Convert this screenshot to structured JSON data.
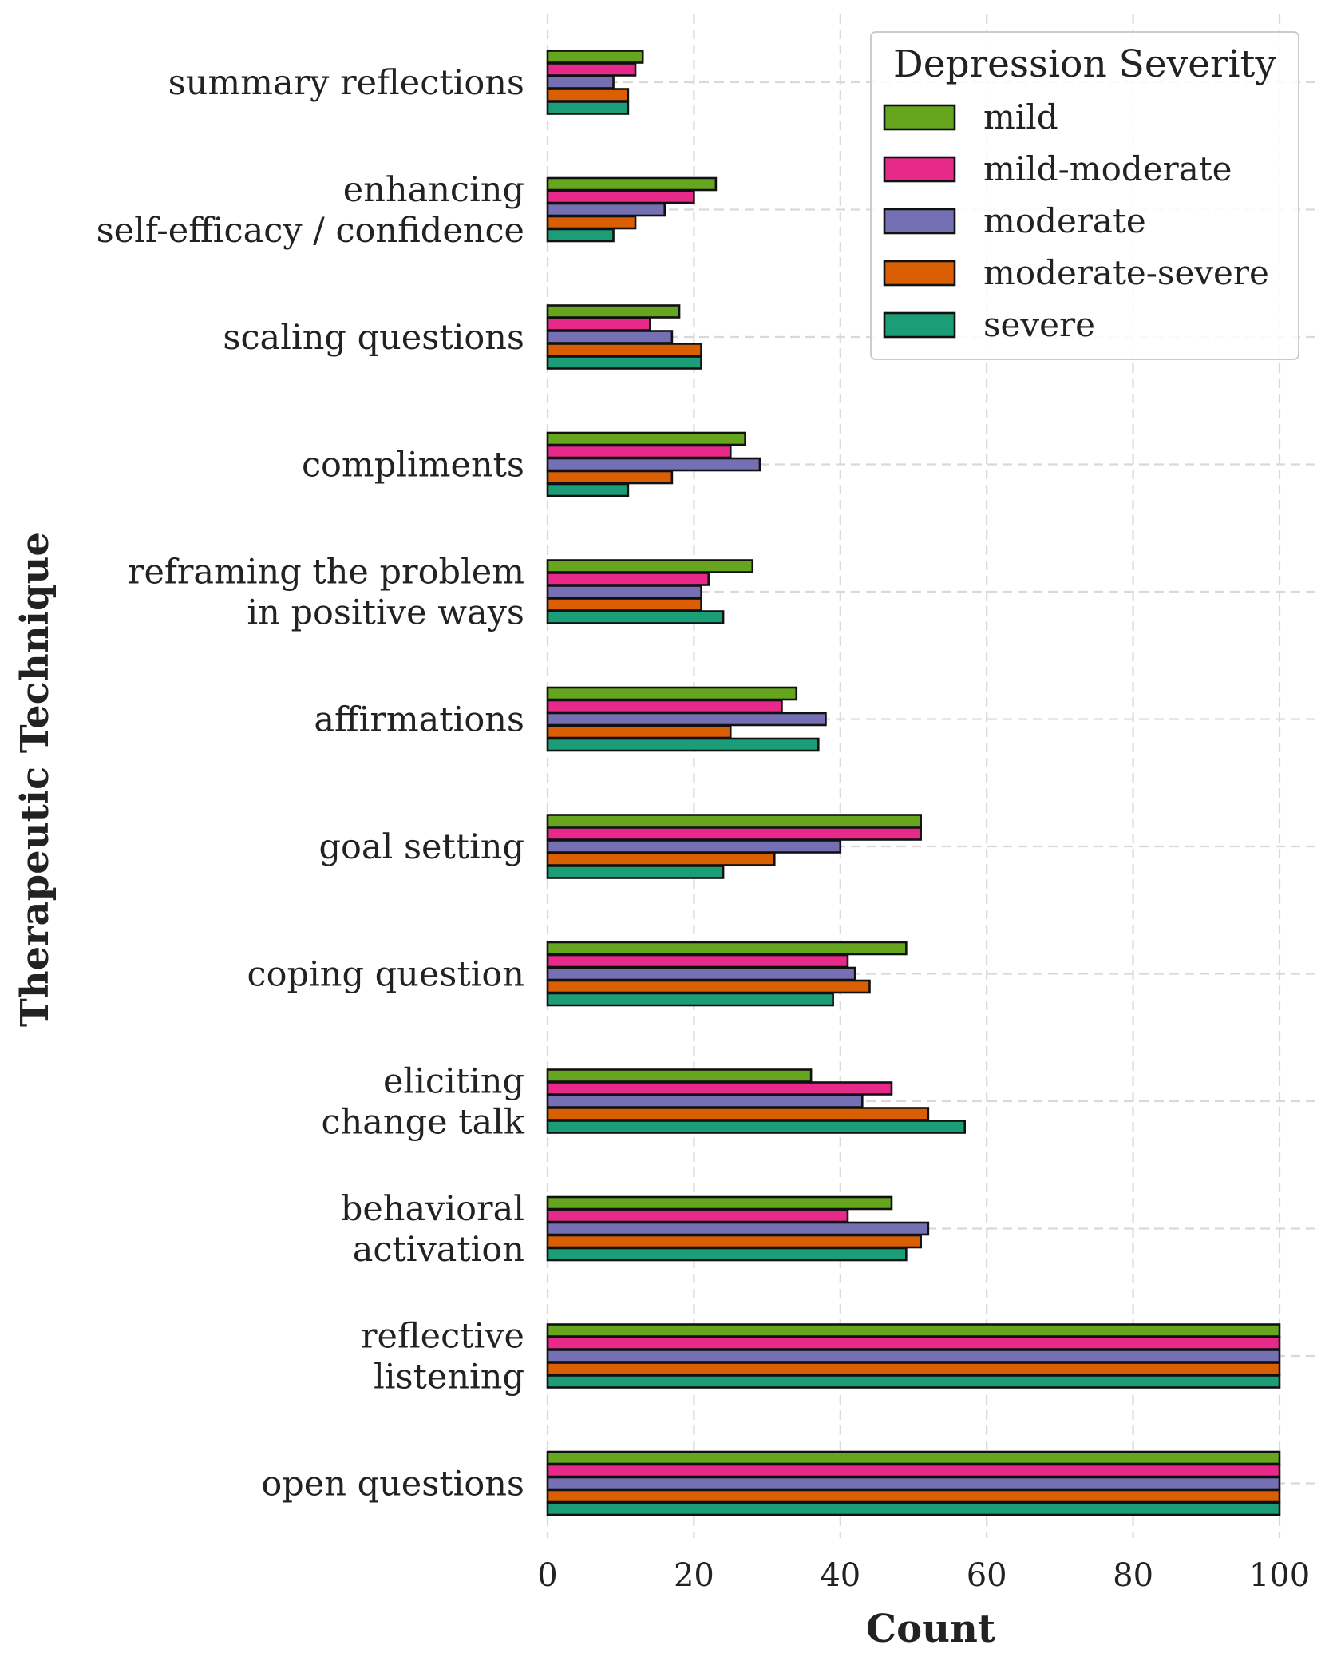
{
  "chart_data": {
    "type": "bar",
    "orientation": "horizontal",
    "title": "",
    "xlabel": "Count",
    "ylabel": "Therapeutic Technique",
    "xlim": [
      0,
      100
    ],
    "xticks": [
      0,
      20,
      40,
      60,
      80,
      100
    ],
    "grid": true,
    "legend": {
      "title": "Depression Severity",
      "placement": "top-right"
    },
    "categories": [
      [
        "summary reflections"
      ],
      [
        "enhancing",
        "self-efficacy / confidence"
      ],
      [
        "scaling questions"
      ],
      [
        "compliments"
      ],
      [
        "reframing the problem",
        "in positive ways"
      ],
      [
        "affirmations"
      ],
      [
        "goal setting"
      ],
      [
        "coping question"
      ],
      [
        "eliciting",
        "change talk"
      ],
      [
        "behavioral",
        "activation"
      ],
      [
        "reflective",
        "listening"
      ],
      [
        "open questions"
      ]
    ],
    "series": [
      {
        "name": "mild",
        "color": "#66a61e",
        "values": [
          13,
          23,
          18,
          27,
          28,
          34,
          51,
          49,
          36,
          47,
          100,
          100
        ]
      },
      {
        "name": "mild-moderate",
        "color": "#e7298a",
        "values": [
          12,
          20,
          14,
          25,
          22,
          32,
          51,
          41,
          47,
          41,
          100,
          100
        ]
      },
      {
        "name": "moderate",
        "color": "#7570b3",
        "values": [
          9,
          16,
          17,
          29,
          21,
          38,
          40,
          42,
          43,
          52,
          100,
          100
        ]
      },
      {
        "name": "moderate-severe",
        "color": "#d95f02",
        "values": [
          11,
          12,
          21,
          17,
          21,
          25,
          31,
          44,
          52,
          51,
          100,
          100
        ]
      },
      {
        "name": "severe",
        "color": "#1b9e77",
        "values": [
          11,
          9,
          21,
          11,
          24,
          37,
          24,
          39,
          57,
          49,
          100,
          100
        ]
      }
    ]
  }
}
